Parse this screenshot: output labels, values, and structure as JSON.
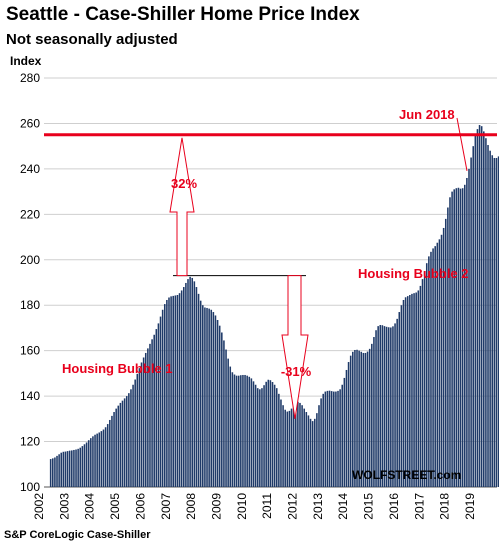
{
  "chart_data": {
    "type": "bar",
    "title": "Seattle - Case-Shiller Home Price Index",
    "subtitle": "Not seasonally adjusted",
    "ylabel": "Index",
    "xlabel": "",
    "ylim": [
      100,
      280
    ],
    "yticks": [
      100,
      120,
      140,
      160,
      180,
      200,
      220,
      240,
      260,
      280
    ],
    "year_labels": [
      "2002",
      "2003",
      "2004",
      "2005",
      "2006",
      "2007",
      "2008",
      "2009",
      "2010",
      "2011",
      "2012",
      "2013",
      "2014",
      "2015",
      "2016",
      "2017",
      "2018",
      "2019"
    ],
    "start_year": 2002,
    "months_per_bar": 1,
    "values": [
      112.3,
      112.6,
      113.0,
      113.7,
      114.4,
      115.1,
      115.5,
      115.6,
      115.8,
      116.0,
      116.1,
      116.3,
      116.5,
      116.8,
      117.3,
      118.0,
      118.8,
      119.6,
      120.6,
      121.5,
      122.3,
      123.0,
      123.5,
      124.0,
      124.6,
      125.3,
      126.3,
      127.7,
      129.5,
      131.3,
      133.0,
      134.5,
      135.8,
      137.0,
      138.0,
      139.0,
      140.0,
      141.3,
      143.0,
      145.0,
      147.3,
      149.8,
      152.3,
      154.8,
      157.0,
      159.0,
      161.0,
      163.0,
      165.0,
      167.0,
      169.5,
      172.0,
      175.0,
      178.0,
      180.5,
      182.3,
      183.4,
      183.9,
      184.1,
      184.3,
      184.5,
      185.3,
      186.5,
      188.0,
      189.8,
      191.5,
      192.5,
      192.0,
      190.5,
      188.0,
      185.0,
      182.0,
      180.0,
      179.0,
      178.8,
      178.5,
      178.0,
      177.0,
      175.5,
      173.5,
      171.0,
      168.0,
      164.5,
      160.5,
      156.5,
      153.0,
      150.5,
      149.5,
      149.0,
      149.0,
      149.2,
      149.3,
      149.3,
      149.0,
      148.5,
      147.8,
      146.5,
      145.0,
      143.5,
      143.0,
      143.5,
      144.8,
      146.3,
      147.2,
      147.0,
      146.2,
      145.0,
      143.5,
      141.0,
      138.5,
      136.0,
      134.0,
      133.2,
      133.5,
      134.5,
      136.0,
      137.2,
      137.5,
      137.0,
      136.0,
      134.5,
      133.0,
      131.5,
      130.0,
      129.0,
      130.0,
      132.5,
      136.0,
      139.0,
      141.0,
      142.0,
      142.3,
      142.4,
      142.2,
      142.0,
      142.0,
      142.3,
      143.0,
      145.0,
      148.0,
      151.5,
      155.0,
      157.8,
      159.5,
      160.3,
      160.4,
      160.0,
      159.5,
      159.0,
      159.0,
      159.6,
      160.8,
      163.0,
      166.0,
      169.0,
      170.8,
      171.3,
      171.2,
      170.8,
      170.5,
      170.3,
      170.2,
      170.7,
      172.0,
      174.0,
      177.0,
      180.0,
      182.3,
      183.5,
      184.0,
      184.5,
      185.0,
      185.3,
      185.6,
      186.5,
      188.5,
      191.5,
      195.0,
      198.5,
      201.5,
      203.5,
      205.0,
      206.0,
      207.5,
      209.0,
      211.0,
      214.0,
      218.0,
      223.0,
      227.5,
      230.0,
      231.0,
      231.5,
      231.7,
      231.3,
      231.5,
      233.0,
      236.0,
      240.0,
      245.0,
      250.0,
      254.5,
      257.5,
      259.3,
      258.8,
      256.5,
      253.5,
      250.5,
      248.0,
      246.0,
      244.8,
      244.8,
      245.5,
      248.0,
      251.0,
      253.5,
      255.5,
      256.0,
      255.5,
      254.5
    ]
  },
  "reference_line": {
    "value": 255,
    "color": "#e8001c"
  },
  "annotations": {
    "peak_label": "Jun 2018",
    "bubble1": "Housing Bubble 1",
    "bubble2": "Housing Bubble 2",
    "pct_up": "32%",
    "pct_down": "-31%"
  },
  "colors": {
    "bars": "#1f3a68",
    "accent": "#e8001c",
    "grid": "#cfcfcf"
  },
  "source": "S&P CoreLogic Case-Shiller",
  "brand": "WOLFSTREET.com"
}
